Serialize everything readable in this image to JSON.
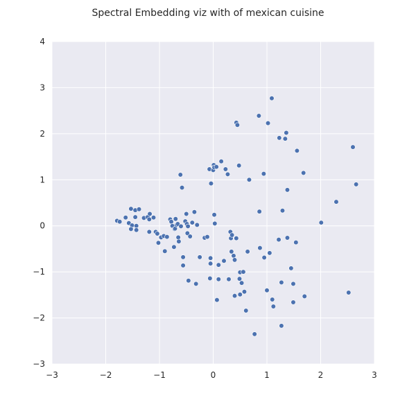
{
  "chart_data": {
    "type": "scatter",
    "title": "Spectral Embedding viz with of mexican cuisine",
    "xlabel": "",
    "ylabel": "",
    "xlim": [
      -3,
      3
    ],
    "ylim": [
      -3,
      4
    ],
    "xticks": [
      -3,
      -2,
      -1,
      0,
      1,
      2,
      3
    ],
    "yticks": [
      -3,
      -2,
      -1,
      0,
      1,
      2,
      3,
      4
    ],
    "grid": true,
    "colors": {
      "background": "#eaeaf2",
      "grid": "#ffffff",
      "marker": "#4c72b0",
      "marker_edge": "#ffffff"
    },
    "points": [
      [
        -1.79,
        0.11
      ],
      [
        -1.74,
        0.09
      ],
      [
        -1.63,
        0.18
      ],
      [
        -1.57,
        0.06
      ],
      [
        -1.53,
        0.37
      ],
      [
        -1.51,
        0.01
      ],
      [
        -1.53,
        -0.07
      ],
      [
        -1.45,
        0.34
      ],
      [
        -1.45,
        0.19
      ],
      [
        -1.43,
        0.0
      ],
      [
        -1.43,
        -0.09
      ],
      [
        -1.38,
        0.36
      ],
      [
        -1.29,
        0.17
      ],
      [
        -1.22,
        0.19
      ],
      [
        -1.18,
        0.26
      ],
      [
        -1.19,
        -0.13
      ],
      [
        -1.19,
        0.14
      ],
      [
        -1.11,
        0.18
      ],
      [
        -1.07,
        -0.13
      ],
      [
        -1.04,
        -0.17
      ],
      [
        -1.02,
        -0.37
      ],
      [
        -0.97,
        -0.25
      ],
      [
        -0.92,
        -0.22
      ],
      [
        -0.9,
        -0.55
      ],
      [
        -0.86,
        -0.24
      ],
      [
        -0.8,
        0.14
      ],
      [
        -0.78,
        0.09
      ],
      [
        -0.76,
        0.0
      ],
      [
        -0.73,
        -0.46
      ],
      [
        -0.72,
        -0.07
      ],
      [
        -0.7,
        0.15
      ],
      [
        -0.71,
        -0.06
      ],
      [
        -0.68,
        0.02
      ],
      [
        -0.66,
        0.04
      ],
      [
        -0.65,
        -0.25
      ],
      [
        -0.64,
        -0.34
      ],
      [
        -0.61,
        1.11
      ],
      [
        -0.6,
        -0.01
      ],
      [
        -0.58,
        0.83
      ],
      [
        -0.56,
        -0.86
      ],
      [
        -0.56,
        -0.68
      ],
      [
        -0.52,
        0.1
      ],
      [
        -0.5,
        0.26
      ],
      [
        -0.49,
        0.04
      ],
      [
        -0.48,
        -0.16
      ],
      [
        -0.47,
        -0.01
      ],
      [
        -0.46,
        -1.19
      ],
      [
        -0.43,
        -0.23
      ],
      [
        -0.39,
        0.07
      ],
      [
        -0.35,
        0.3
      ],
      [
        -0.32,
        -1.26
      ],
      [
        -0.3,
        0.02
      ],
      [
        -0.25,
        -0.68
      ],
      [
        -0.16,
        -0.26
      ],
      [
        -0.11,
        -0.24
      ],
      [
        -0.07,
        1.23
      ],
      [
        -0.06,
        -1.14
      ],
      [
        -0.05,
        -0.7
      ],
      [
        -0.05,
        -0.82
      ],
      [
        -0.04,
        0.92
      ],
      [
        0.0,
        1.21
      ],
      [
        0.01,
        1.32
      ],
      [
        0.02,
        1.27
      ],
      [
        0.02,
        0.24
      ],
      [
        0.03,
        0.05
      ],
      [
        0.06,
        1.28
      ],
      [
        0.07,
        -1.61
      ],
      [
        0.1,
        -1.16
      ],
      [
        0.1,
        -0.85
      ],
      [
        0.15,
        1.4
      ],
      [
        0.2,
        -0.76
      ],
      [
        0.23,
        1.23
      ],
      [
        0.27,
        1.12
      ],
      [
        0.29,
        -1.16
      ],
      [
        0.32,
        -0.13
      ],
      [
        0.33,
        -0.27
      ],
      [
        0.34,
        -0.56
      ],
      [
        0.35,
        -0.2
      ],
      [
        0.38,
        -0.65
      ],
      [
        0.4,
        -1.52
      ],
      [
        0.4,
        -0.74
      ],
      [
        0.43,
        -0.27
      ],
      [
        0.43,
        2.24
      ],
      [
        0.45,
        2.19
      ],
      [
        0.48,
        1.31
      ],
      [
        0.49,
        -1.15
      ],
      [
        0.5,
        -1.49
      ],
      [
        0.5,
        -1.01
      ],
      [
        0.53,
        -1.24
      ],
      [
        0.56,
        -1.0
      ],
      [
        0.58,
        -1.43
      ],
      [
        0.61,
        -1.84
      ],
      [
        0.64,
        -0.56
      ],
      [
        0.67,
        1.0
      ],
      [
        0.77,
        -2.35
      ],
      [
        0.85,
        2.39
      ],
      [
        0.86,
        0.31
      ],
      [
        0.87,
        -0.48
      ],
      [
        0.94,
        1.13
      ],
      [
        0.95,
        -0.69
      ],
      [
        1.0,
        -1.4
      ],
      [
        1.02,
        2.23
      ],
      [
        1.05,
        -0.59
      ],
      [
        1.09,
        2.77
      ],
      [
        1.1,
        -1.6
      ],
      [
        1.12,
        -1.75
      ],
      [
        1.22,
        -0.3
      ],
      [
        1.23,
        1.91
      ],
      [
        1.27,
        -1.23
      ],
      [
        1.29,
        0.33
      ],
      [
        1.27,
        -2.17
      ],
      [
        1.34,
        1.89
      ],
      [
        1.36,
        2.02
      ],
      [
        1.38,
        0.78
      ],
      [
        1.38,
        -0.26
      ],
      [
        1.45,
        -0.92
      ],
      [
        1.49,
        -1.26
      ],
      [
        1.49,
        -1.66
      ],
      [
        1.54,
        -0.36
      ],
      [
        1.56,
        1.63
      ],
      [
        1.68,
        1.15
      ],
      [
        1.7,
        -1.53
      ],
      [
        2.01,
        0.07
      ],
      [
        2.29,
        0.52
      ],
      [
        2.52,
        -1.45
      ],
      [
        2.6,
        1.71
      ],
      [
        2.66,
        0.9
      ]
    ]
  }
}
